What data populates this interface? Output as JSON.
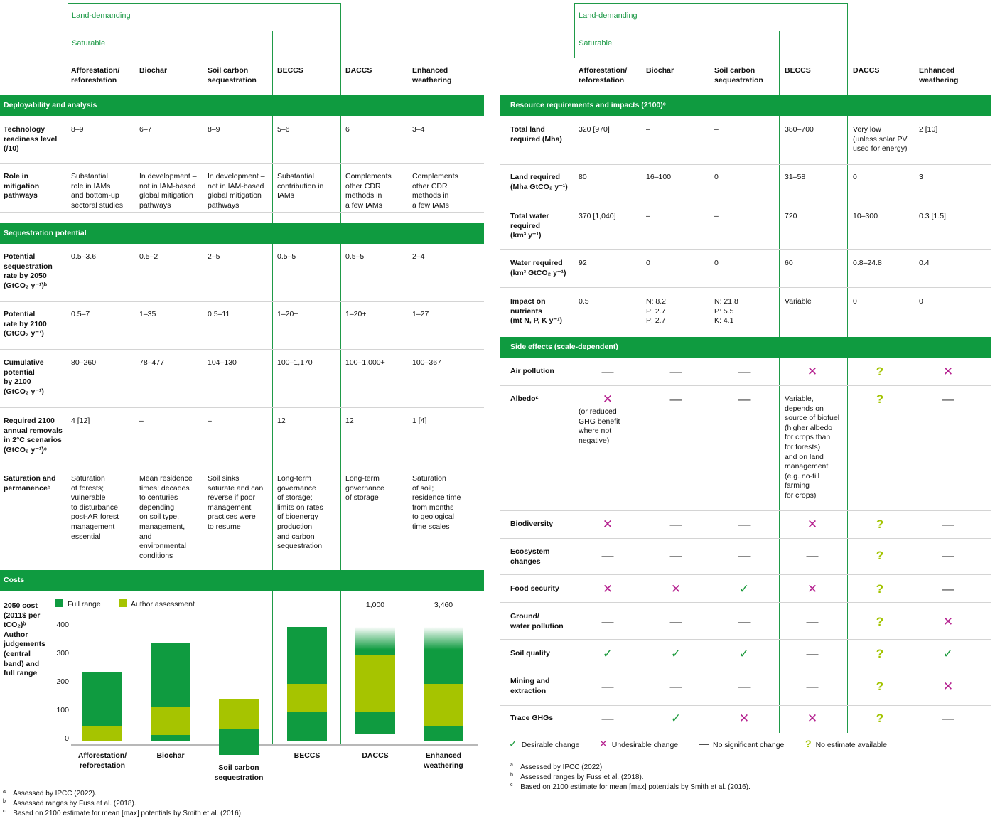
{
  "groups": {
    "land_demanding": "Land-demanding",
    "saturable": "Saturable"
  },
  "columns": [
    "Afforestation/\nreforestation",
    "Biochar",
    "Soil carbon\nsequestration",
    "BECCS",
    "DACCS",
    "Enhanced\nweathering"
  ],
  "left": {
    "band_deploy": "Deployability and analysis",
    "band_seq": "Sequestration potential",
    "band_costs": "Costs",
    "rows": [
      {
        "label": "Technology\nreadiness level\n(/10)",
        "values": [
          "8–9",
          "6–7",
          "8–9",
          "5–6",
          "6",
          "3–4"
        ]
      },
      {
        "label": "Role in\nmitigation\npathways",
        "values": [
          "Substantial\nrole in IAMs\nand bottom-up\nsectoral studies",
          "In development –\nnot in IAM-based\nglobal mitigation\npathways",
          "In development –\nnot in IAM-based\nglobal mitigation\npathways",
          "Substantial\ncontribution in\nIAMs",
          "Complements\nother CDR\nmethods in\na few IAMs",
          "Complements\nother CDR\nmethods in\na few IAMs"
        ]
      },
      {
        "label": "Potential\nsequestration\nrate by 2050\n(GtCO₂ y⁻¹)ᵇ",
        "values": [
          "0.5–3.6",
          "0.5–2",
          "2–5",
          "0.5–5",
          "0.5–5",
          "2–4"
        ]
      },
      {
        "label": "Potential\nrate by 2100\n(GtCO₂ y⁻¹)",
        "values": [
          "0.5–7",
          "1–35",
          "0.5–11",
          "1–20+",
          "1–20+",
          "1–27"
        ]
      },
      {
        "label": "Cumulative\npotential\nby 2100\n(GtCO₂ y⁻¹)",
        "values": [
          "80–260",
          "78–477",
          "104–130",
          "100–1,170",
          "100–1,000+",
          "100–367"
        ]
      },
      {
        "label": "Required 2100\nannual removals\nin 2°C scenarios\n(GtCO₂ y⁻¹)ᶜ",
        "values": [
          "4 [12]",
          "–",
          "–",
          "12",
          "12",
          "1 [4]"
        ]
      },
      {
        "label": "Saturation and\npermanenceᵇ",
        "values": [
          "Saturation\nof forests;\nvulnerable\nto disturbance;\npost-AR forest\nmanagement\nessential",
          "Mean residence\ntimes: decades\nto centuries\ndepending\non soil type,\nmanagement,\nand\nenvironmental\nconditions",
          "Soil sinks\nsaturate and can\nreverse if poor\nmanagement\npractices were\nto resume",
          "Long-term\ngovernance\nof storage;\nlimits on rates\nof bioenergy\nproduction\nand carbon\nsequestration",
          "Long-term\ngovernance\nof storage",
          "Saturation\nof soil;\nresidence time\nfrom months\nto geological\ntime scales"
        ]
      }
    ],
    "cost_label": "2050 cost\n(2011$ per\ntCO₂)ᵇ\nAuthor\njudgements\n(central\nband) and\nfull range",
    "footnotes": [
      "Assessed by IPCC (2022).",
      "Assessed ranges by Fuss et al. (2018).",
      "Based on 2100 estimate for mean [max] potentials by Smith et al. (2016)."
    ]
  },
  "chart_data": {
    "type": "bar",
    "categories": [
      "Afforestation/\nreforestation",
      "Biochar",
      "Soil carbon\nsequestration",
      "BECCS",
      "DACCS",
      "Enhanced\nweathering"
    ],
    "legend": [
      "Full range",
      "Author assessment"
    ],
    "full_range": [
      [
        0,
        240
      ],
      [
        0,
        345
      ],
      [
        -50,
        40
      ],
      [
        0,
        400
      ],
      [
        25,
        400
      ],
      [
        0,
        400
      ]
    ],
    "author_assessment": [
      [
        0,
        50
      ],
      [
        20,
        120
      ],
      [
        40,
        145
      ],
      [
        100,
        200
      ],
      [
        100,
        300
      ],
      [
        50,
        200
      ]
    ],
    "faded_top": [
      false,
      false,
      false,
      false,
      true,
      true
    ],
    "top_labels": [
      "",
      "",
      "",
      "",
      "1,000",
      "3,460"
    ],
    "yticks": [
      "0",
      "100",
      "200",
      "300",
      "400"
    ],
    "ylim": [
      -50,
      420
    ],
    "colors": {
      "full": "#0f9b40",
      "author": "#a6c400"
    }
  },
  "right": {
    "band_resources": "Resource requirements and impacts (2100)ᶜ",
    "band_side": "Side effects (scale-dependent)",
    "rows": [
      {
        "label": "Total land\nrequired (Mha)",
        "values": [
          "320 [970]",
          "–",
          "–",
          "380–700",
          "Very low\n(unless solar PV\nused for energy)",
          "2 [10]"
        ]
      },
      {
        "label": "Land required\n(Mha GtCO₂ y⁻¹)",
        "values": [
          "80",
          "16–100",
          "0",
          "31–58",
          "0",
          "3"
        ]
      },
      {
        "label": "Total water\nrequired\n(km³ y⁻¹)",
        "values": [
          "370 [1,040]",
          "–",
          "–",
          "720",
          "10–300",
          "0.3 [1.5]"
        ]
      },
      {
        "label": "Water required\n(km³ GtCO₂ y⁻¹)",
        "values": [
          "92",
          "0",
          "0",
          "60",
          "0.8–24.8",
          "0.4"
        ]
      },
      {
        "label": "Impact on\nnutrients\n(mt N, P, K y⁻¹)",
        "values": [
          "0.5",
          "N: 8.2\nP: 2.7\nP: 2.7",
          "N: 21.8\nP: 5.5\nK: 4.1",
          "Variable",
          "0",
          "0"
        ]
      }
    ],
    "side_rows": [
      {
        "label": "Air pollution",
        "marks": [
          "dash",
          "dash",
          "dash",
          "cross",
          "q",
          "cross"
        ]
      },
      {
        "label": "Albedoᶜ",
        "marks": [
          "cross",
          "dash",
          "dash",
          "none",
          "q",
          "dash"
        ],
        "notes": [
          "(or reduced\nGHG benefit\nwhere not\nnegative)",
          "",
          "",
          "Variable,\ndepends on\nsource of biofuel\n(higher albedo\nfor crops than\nfor forests)\nand on land\nmanagement\n(e.g. no-till\nfarming\nfor crops)",
          "",
          ""
        ]
      },
      {
        "label": "Biodiversity",
        "marks": [
          "cross",
          "dash",
          "dash",
          "cross",
          "q",
          "dash"
        ]
      },
      {
        "label": "Ecosystem\nchanges",
        "marks": [
          "dash",
          "dash",
          "dash",
          "dash",
          "q",
          "dash"
        ]
      },
      {
        "label": "Food security",
        "marks": [
          "cross",
          "cross",
          "check",
          "cross",
          "q",
          "dash"
        ]
      },
      {
        "label": "Ground/\nwater pollution",
        "marks": [
          "dash",
          "dash",
          "dash",
          "dash",
          "q",
          "cross"
        ]
      },
      {
        "label": "Soil quality",
        "marks": [
          "check",
          "check",
          "check",
          "dash",
          "q",
          "check"
        ]
      },
      {
        "label": "Mining and\nextraction",
        "marks": [
          "dash",
          "dash",
          "dash",
          "dash",
          "q",
          "cross"
        ]
      },
      {
        "label": "Trace GHGs",
        "marks": [
          "dash",
          "check",
          "cross",
          "cross",
          "q",
          "dash"
        ]
      }
    ],
    "legend": [
      "Desirable change",
      "Undesirable change",
      "No significant change",
      "No estimate available"
    ],
    "footnotes": [
      "Assessed by IPCC (2022).",
      "Assessed ranges by Fuss et al. (2018).",
      "Based on 2100 estimate for mean [max] potentials by Smith et al. (2016)."
    ]
  },
  "footnote_marks": [
    "a",
    "b",
    "c"
  ]
}
